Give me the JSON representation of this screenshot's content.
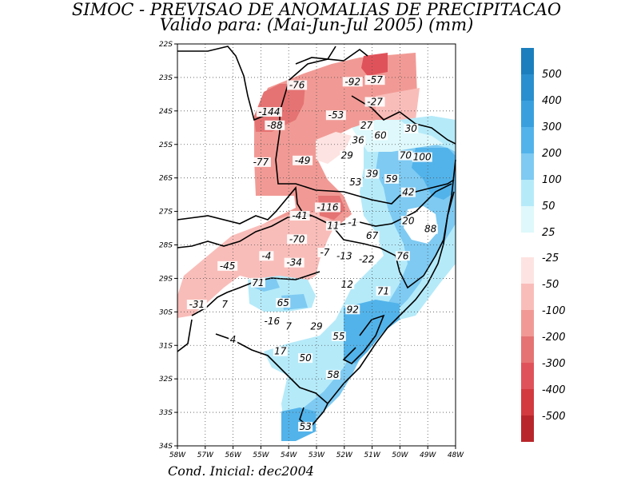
{
  "title_line1": "SIMOC - PREVISAO DE ANOMALIAS DE PRECIPITACAO",
  "title_line2": "Valido para: (Mai-Jun-Jul 2005) (mm)",
  "footer": "Cond. Inicial: dec2004",
  "lat_labels": [
    "22S",
    "23S",
    "24S",
    "25S",
    "26S",
    "27S",
    "28S",
    "29S",
    "30S",
    "31S",
    "32S",
    "33S",
    "34S"
  ],
  "lon_labels": [
    "58W",
    "57W",
    "56W",
    "55W",
    "54W",
    "53W",
    "52W",
    "51W",
    "50W",
    "49W",
    "48W"
  ],
  "colorbar": {
    "positive": [
      {
        "label": "500",
        "color": "#1b7fbd"
      },
      {
        "label": "400",
        "color": "#2a8fce"
      },
      {
        "label": "300",
        "color": "#39a0dd"
      },
      {
        "label": "200",
        "color": "#52b3ea"
      },
      {
        "label": "100",
        "color": "#7ecaf2"
      },
      {
        "label": "50",
        "color": "#b5eaf9"
      },
      {
        "label": "25",
        "color": "#def8fb"
      }
    ],
    "negative": [
      {
        "label": "-25",
        "color": "#fde3e1"
      },
      {
        "label": "-50",
        "color": "#f9bdb9"
      },
      {
        "label": "-100",
        "color": "#f19a95"
      },
      {
        "label": "-200",
        "color": "#e57373"
      },
      {
        "label": "-300",
        "color": "#e0525a"
      },
      {
        "label": "-400",
        "color": "#d23a3f"
      },
      {
        "label": "-500",
        "color": "#b8262b"
      }
    ]
  },
  "contour_labels": [
    {
      "text": "-76",
      "lon": -53.7,
      "lat": -23.3
    },
    {
      "text": "-92",
      "lon": -51.7,
      "lat": -23.2
    },
    {
      "text": "-57",
      "lon": -50.9,
      "lat": -23.15
    },
    {
      "text": "-27",
      "lon": -50.9,
      "lat": -23.8
    },
    {
      "text": "-144",
      "lon": -54.7,
      "lat": -24.1
    },
    {
      "text": "-53",
      "lon": -52.3,
      "lat": -24.2
    },
    {
      "text": "-88",
      "lon": -54.5,
      "lat": -24.5
    },
    {
      "text": "27",
      "lon": -51.2,
      "lat": -24.5
    },
    {
      "text": "30",
      "lon": -49.6,
      "lat": -24.6
    },
    {
      "text": "36",
      "lon": -51.5,
      "lat": -24.95
    },
    {
      "text": "60",
      "lon": -50.7,
      "lat": -24.8
    },
    {
      "text": "29",
      "lon": -51.9,
      "lat": -25.4
    },
    {
      "text": "70",
      "lon": -49.8,
      "lat": -25.4
    },
    {
      "text": "100",
      "lon": -49.2,
      "lat": -25.45
    },
    {
      "text": "-77",
      "lon": -55.0,
      "lat": -25.6
    },
    {
      "text": "-49",
      "lon": -53.5,
      "lat": -25.55
    },
    {
      "text": "39",
      "lon": -51.0,
      "lat": -25.95
    },
    {
      "text": "59",
      "lon": -50.3,
      "lat": -26.1
    },
    {
      "text": "53",
      "lon": -51.6,
      "lat": -26.2
    },
    {
      "text": "42",
      "lon": -49.7,
      "lat": -26.5
    },
    {
      "text": "-116",
      "lon": -52.6,
      "lat": -26.95
    },
    {
      "text": "-41",
      "lon": -53.6,
      "lat": -27.2
    },
    {
      "text": "11",
      "lon": -52.4,
      "lat": -27.5
    },
    {
      "text": "-1",
      "lon": -51.7,
      "lat": -27.4
    },
    {
      "text": "20",
      "lon": -49.7,
      "lat": -27.35
    },
    {
      "text": "88",
      "lon": -48.9,
      "lat": -27.6
    },
    {
      "text": "67",
      "lon": -51.0,
      "lat": -27.8
    },
    {
      "text": "-70",
      "lon": -53.7,
      "lat": -27.9
    },
    {
      "text": "-7",
      "lon": -52.7,
      "lat": -28.3
    },
    {
      "text": "-13",
      "lon": -52.0,
      "lat": -28.4
    },
    {
      "text": "-22",
      "lon": -51.2,
      "lat": -28.5
    },
    {
      "text": "76",
      "lon": -49.9,
      "lat": -28.4
    },
    {
      "text": "-4",
      "lon": -54.8,
      "lat": -28.4
    },
    {
      "text": "-34",
      "lon": -53.8,
      "lat": -28.6
    },
    {
      "text": "-45",
      "lon": -56.2,
      "lat": -28.7
    },
    {
      "text": "71",
      "lon": -55.1,
      "lat": -29.2
    },
    {
      "text": "12",
      "lon": -51.9,
      "lat": -29.25
    },
    {
      "text": "71",
      "lon": -50.6,
      "lat": -29.45
    },
    {
      "text": "-31",
      "lon": -57.3,
      "lat": -29.85
    },
    {
      "text": "7",
      "lon": -56.3,
      "lat": -29.85
    },
    {
      "text": "65",
      "lon": -54.2,
      "lat": -29.8
    },
    {
      "text": "92",
      "lon": -51.7,
      "lat": -30.0
    },
    {
      "text": "-16",
      "lon": -54.6,
      "lat": -30.35
    },
    {
      "text": "7",
      "lon": -54.0,
      "lat": -30.5
    },
    {
      "text": "29",
      "lon": -53.0,
      "lat": -30.5
    },
    {
      "text": "55",
      "lon": -52.2,
      "lat": -30.8
    },
    {
      "text": "4",
      "lon": -56.0,
      "lat": -30.9
    },
    {
      "text": "17",
      "lon": -54.3,
      "lat": -31.25
    },
    {
      "text": "50",
      "lon": -53.4,
      "lat": -31.45
    },
    {
      "text": "58",
      "lon": -52.4,
      "lat": -31.95
    },
    {
      "text": "53",
      "lon": -53.4,
      "lat": -33.5
    }
  ]
}
